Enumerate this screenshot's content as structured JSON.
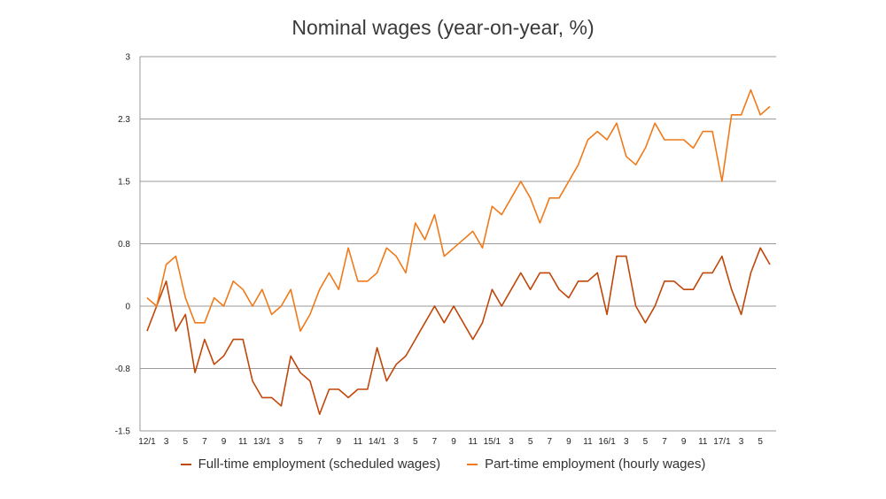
{
  "chart_data": {
    "type": "line",
    "title": "Nominal wages (year-on-year, %)",
    "xlabel": "",
    "ylabel": "",
    "ylim": [
      -1.5,
      3
    ],
    "yticks": [
      {
        "label": "3",
        "value": 3
      },
      {
        "label": "2.3",
        "value": 2.25
      },
      {
        "label": "1.5",
        "value": 1.5
      },
      {
        "label": "0.8",
        "value": 0.75
      },
      {
        "label": "0",
        "value": 0
      },
      {
        "label": "-0.8",
        "value": -0.75
      },
      {
        "label": "-1.5",
        "value": -1.5
      }
    ],
    "x_tick_labels": [
      "12/1",
      "3",
      "5",
      "7",
      "9",
      "11",
      "13/1",
      "3",
      "5",
      "7",
      "9",
      "11",
      "14/1",
      "3",
      "5",
      "7",
      "9",
      "11",
      "15/1",
      "3",
      "5",
      "7",
      "9",
      "11",
      "16/1",
      "3",
      "5",
      "7",
      "9",
      "11",
      "17/1",
      "3",
      "5"
    ],
    "grid": true,
    "legend_position": "bottom",
    "series": [
      {
        "name": "Full-time employment (scheduled wages)",
        "color": "#c0470a",
        "values": [
          -0.3,
          0,
          0.3,
          -0.3,
          -0.1,
          -0.8,
          -0.4,
          -0.7,
          -0.6,
          -0.4,
          -0.4,
          -0.9,
          -1.1,
          -1.1,
          -1.2,
          -0.6,
          -0.8,
          -0.9,
          -1.3,
          -1.0,
          -1.0,
          -1.1,
          -1.0,
          -1.0,
          -0.5,
          -0.9,
          -0.7,
          -0.6,
          -0.4,
          -0.2,
          0,
          -0.2,
          0,
          -0.2,
          -0.4,
          -0.2,
          0.2,
          0,
          0.2,
          0.4,
          0.2,
          0.4,
          0.4,
          0.2,
          0.1,
          0.3,
          0.3,
          0.4,
          -0.1,
          0.6,
          0.6,
          0,
          -0.2,
          0,
          0.3,
          0.3,
          0.2,
          0.2,
          0.4,
          0.4,
          0.6,
          0.2,
          -0.1,
          0.4,
          0.7,
          0.5
        ]
      },
      {
        "name": "Part-time employment (hourly wages)",
        "color": "#f07a1a",
        "values": [
          0.1,
          0,
          0.5,
          0.6,
          0.1,
          -0.2,
          -0.2,
          0.1,
          0,
          0.3,
          0.2,
          0,
          0.2,
          -0.1,
          0,
          0.2,
          -0.3,
          -0.1,
          0.2,
          0.4,
          0.2,
          0.7,
          0.3,
          0.3,
          0.4,
          0.7,
          0.6,
          0.4,
          1.0,
          0.8,
          1.1,
          0.6,
          0.7,
          0.8,
          0.9,
          0.7,
          1.2,
          1.1,
          1.3,
          1.5,
          1.3,
          1.0,
          1.3,
          1.3,
          1.5,
          1.7,
          2.0,
          2.1,
          2.0,
          2.2,
          1.8,
          1.7,
          1.9,
          2.2,
          2.0,
          2.0,
          2.0,
          1.9,
          2.1,
          2.1,
          1.5,
          2.3,
          2.3,
          2.6,
          2.3,
          2.4
        ]
      }
    ]
  }
}
